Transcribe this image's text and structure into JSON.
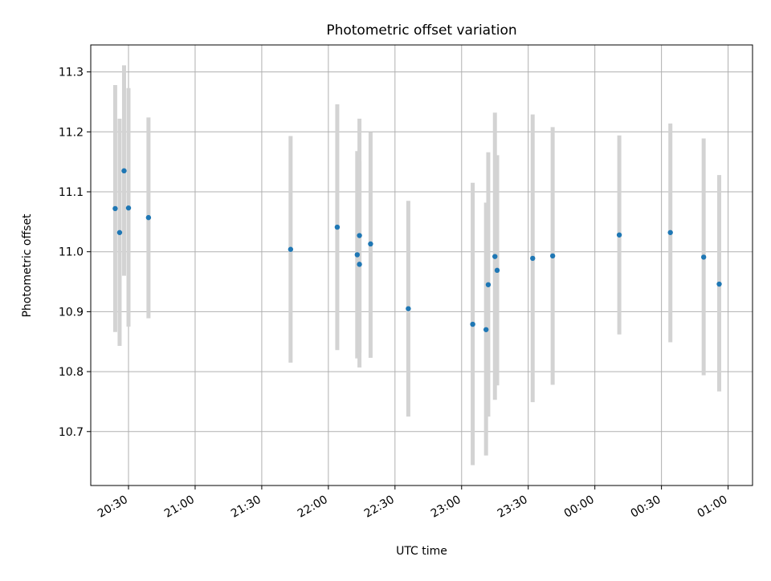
{
  "chart_data": {
    "type": "scatter",
    "title": "Photometric offset variation",
    "xlabel": "UTC time",
    "ylabel": "Photometric offset",
    "x_tick_labels": [
      "20:30",
      "21:00",
      "21:30",
      "22:00",
      "22:30",
      "23:00",
      "23:30",
      "00:00",
      "00:30",
      "01:00"
    ],
    "y_tick_labels": [
      "10.7",
      "10.8",
      "10.9",
      "11.0",
      "11.1",
      "11.2",
      "11.3"
    ],
    "xlim": [
      "20:13",
      "01:11"
    ],
    "ylim": [
      10.61,
      11.345
    ],
    "grid": true,
    "colors": {
      "marker": "#1f77b4",
      "errorbar": "#d3d3d3",
      "grid": "#b0b0b0"
    },
    "series": [
      {
        "points": [
          {
            "x": "20:24",
            "y": 11.072,
            "yerr_low": 10.866,
            "yerr_high": 11.278
          },
          {
            "x": "20:26",
            "y": 11.032,
            "yerr_low": 10.843,
            "yerr_high": 11.222
          },
          {
            "x": "20:28",
            "y": 11.135,
            "yerr_low": 10.96,
            "yerr_high": 11.311
          },
          {
            "x": "20:30",
            "y": 11.073,
            "yerr_low": 10.875,
            "yerr_high": 11.273
          },
          {
            "x": "20:39",
            "y": 11.057,
            "yerr_low": 10.889,
            "yerr_high": 11.224
          },
          {
            "x": "21:43",
            "y": 11.004,
            "yerr_low": 10.815,
            "yerr_high": 11.193
          },
          {
            "x": "22:04",
            "y": 11.041,
            "yerr_low": 10.836,
            "yerr_high": 11.246
          },
          {
            "x": "22:13",
            "y": 10.995,
            "yerr_low": 10.822,
            "yerr_high": 11.168
          },
          {
            "x": "22:14",
            "y": 10.979,
            "yerr_low": 10.807,
            "yerr_high": 11.151
          },
          {
            "x": "22:14",
            "y": 11.027,
            "yerr_low": 10.831,
            "yerr_high": 11.222
          },
          {
            "x": "22:19",
            "y": 11.013,
            "yerr_low": 10.823,
            "yerr_high": 11.199
          },
          {
            "x": "22:36",
            "y": 10.905,
            "yerr_low": 10.725,
            "yerr_high": 11.085
          },
          {
            "x": "23:05",
            "y": 10.879,
            "yerr_low": 10.644,
            "yerr_high": 11.115
          },
          {
            "x": "23:11",
            "y": 10.87,
            "yerr_low": 10.66,
            "yerr_high": 11.082
          },
          {
            "x": "23:12",
            "y": 10.945,
            "yerr_low": 10.725,
            "yerr_high": 11.166
          },
          {
            "x": "23:15",
            "y": 10.992,
            "yerr_low": 10.753,
            "yerr_high": 11.232
          },
          {
            "x": "23:16",
            "y": 10.969,
            "yerr_low": 10.777,
            "yerr_high": 11.161
          },
          {
            "x": "23:32",
            "y": 10.989,
            "yerr_low": 10.749,
            "yerr_high": 11.229
          },
          {
            "x": "23:41",
            "y": 10.993,
            "yerr_low": 10.778,
            "yerr_high": 11.208
          },
          {
            "x": "00:11",
            "y": 11.028,
            "yerr_low": 10.862,
            "yerr_high": 11.194
          },
          {
            "x": "00:34",
            "y": 11.032,
            "yerr_low": 10.849,
            "yerr_high": 11.214
          },
          {
            "x": "00:49",
            "y": 10.991,
            "yerr_low": 10.794,
            "yerr_high": 11.189
          },
          {
            "x": "00:56",
            "y": 10.946,
            "yerr_low": 10.767,
            "yerr_high": 11.128
          }
        ]
      }
    ]
  }
}
